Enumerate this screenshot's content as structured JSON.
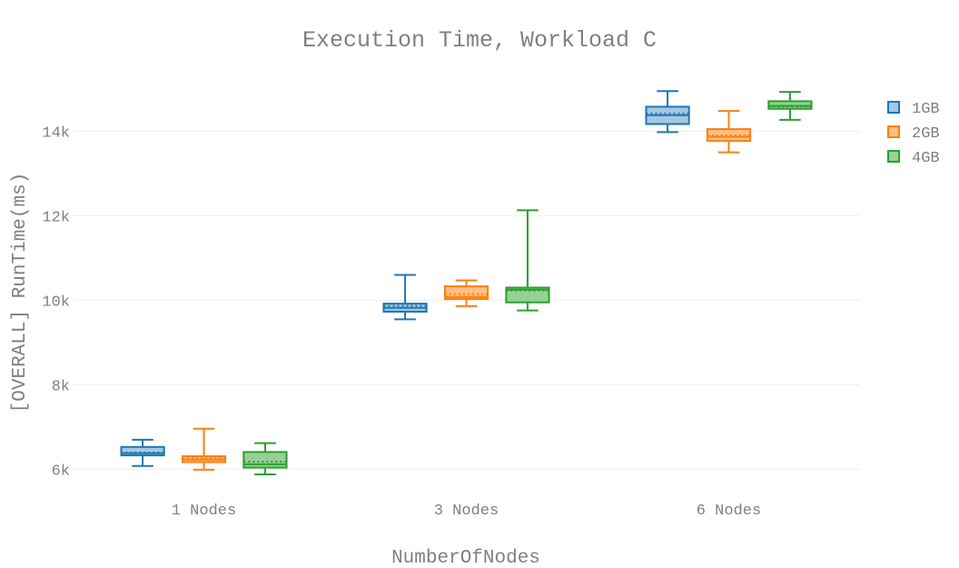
{
  "chart_data": {
    "type": "box",
    "title": "Execution Time, Workload C",
    "xlabel": "NumberOfNodes",
    "ylabel": "[OVERALL] RunTime(ms)",
    "categories": [
      "1 Nodes",
      "3 Nodes",
      "6 Nodes"
    ],
    "y_ticks": [
      6000,
      8000,
      10000,
      12000,
      14000
    ],
    "y_tick_labels": [
      "6k",
      "8k",
      "10k",
      "12k",
      "14k"
    ],
    "ylim": [
      5450,
      15600
    ],
    "grid": true,
    "legend_position": "top-right",
    "series": [
      {
        "name": "1GB",
        "color": "#1f77b4",
        "fill": "#a5c8e1",
        "boxes": [
          {
            "min": 6080,
            "q1": 6330,
            "median": 6380,
            "mean": 6400,
            "q3": 6530,
            "max": 6700
          },
          {
            "min": 9550,
            "q1": 9730,
            "median": 9820,
            "mean": 9870,
            "q3": 9920,
            "max": 10600
          },
          {
            "min": 13980,
            "q1": 14170,
            "median": 14380,
            "mean": 14420,
            "q3": 14580,
            "max": 14950
          }
        ]
      },
      {
        "name": "2GB",
        "color": "#ff7f0e",
        "fill": "#ffbf87",
        "boxes": [
          {
            "min": 5990,
            "q1": 6170,
            "median": 6230,
            "mean": 6260,
            "q3": 6310,
            "max": 6960
          },
          {
            "min": 9860,
            "q1": 10030,
            "median": 10080,
            "mean": 10150,
            "q3": 10330,
            "max": 10470
          },
          {
            "min": 13500,
            "q1": 13770,
            "median": 13870,
            "mean": 13900,
            "q3": 14050,
            "max": 14480
          }
        ]
      },
      {
        "name": "4GB",
        "color": "#2ca02c",
        "fill": "#96d096",
        "boxes": [
          {
            "min": 5880,
            "q1": 6040,
            "median": 6120,
            "mean": 6180,
            "q3": 6410,
            "max": 6620
          },
          {
            "min": 9760,
            "q1": 9950,
            "median": 10250,
            "mean": 10230,
            "q3": 10300,
            "max": 12130
          },
          {
            "min": 14270,
            "q1": 14530,
            "median": 14600,
            "mean": 14580,
            "q3": 14710,
            "max": 14930
          }
        ]
      }
    ]
  }
}
